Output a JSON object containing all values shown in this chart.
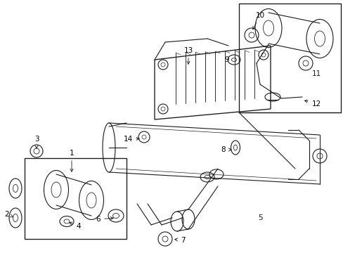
{
  "bg_color": "#ffffff",
  "line_color": "#1a1a1a",
  "lw": 0.8,
  "fig_width": 4.89,
  "fig_height": 3.6,
  "dpi": 100,
  "label_fs": 7.5
}
